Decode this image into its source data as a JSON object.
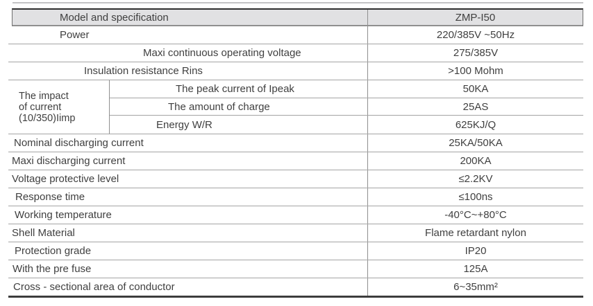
{
  "table": {
    "header": {
      "label": "Model and specification",
      "value": "ZMP-I50"
    },
    "rows_top": [
      {
        "label": "Power",
        "value": "220/385V ~50Hz"
      },
      {
        "label": "Maxi continuous operating voltage",
        "value": "275/385V"
      },
      {
        "label": "Insulation resistance Rins",
        "value": ">100 Mohm"
      }
    ],
    "impact_group": {
      "label_lines": [
        "The impact",
        "of current",
        "(10/350)Iimp"
      ],
      "sub_rows": [
        {
          "label": "The peak current of Ipeak",
          "value": "50KA"
        },
        {
          "label": "The amount of charge",
          "value": "25AS"
        },
        {
          "label": "Energy W/R",
          "value": "625KJ/Q"
        }
      ]
    },
    "rows_bottom": [
      {
        "label": "Nominal discharging current",
        "value": "25KA/50KA"
      },
      {
        "label": "Maxi discharging current",
        "value": "200KA"
      },
      {
        "label": "Voltage protective level",
        "value": "≤2.2KV"
      },
      {
        "label": "Response time",
        "value": "≤100ns"
      },
      {
        "label": "Working temperature",
        "value": "-40°C~+80°C"
      },
      {
        "label": "Shell Material",
        "value": "Flame retardant nylon"
      },
      {
        "label": "Protection grade",
        "value": "IP20"
      },
      {
        "label": "With the pre fuse",
        "value": "125A"
      },
      {
        "label": "Cross - sectional area of conductor",
        "value": "6~35mm²"
      }
    ],
    "colors": {
      "header_bg": "#e1e1e3",
      "border_dark": "#2e2e2e",
      "border_medium": "#8f8f8f",
      "border_light": "#a3a3a3",
      "text": "#3f3f3f"
    }
  }
}
